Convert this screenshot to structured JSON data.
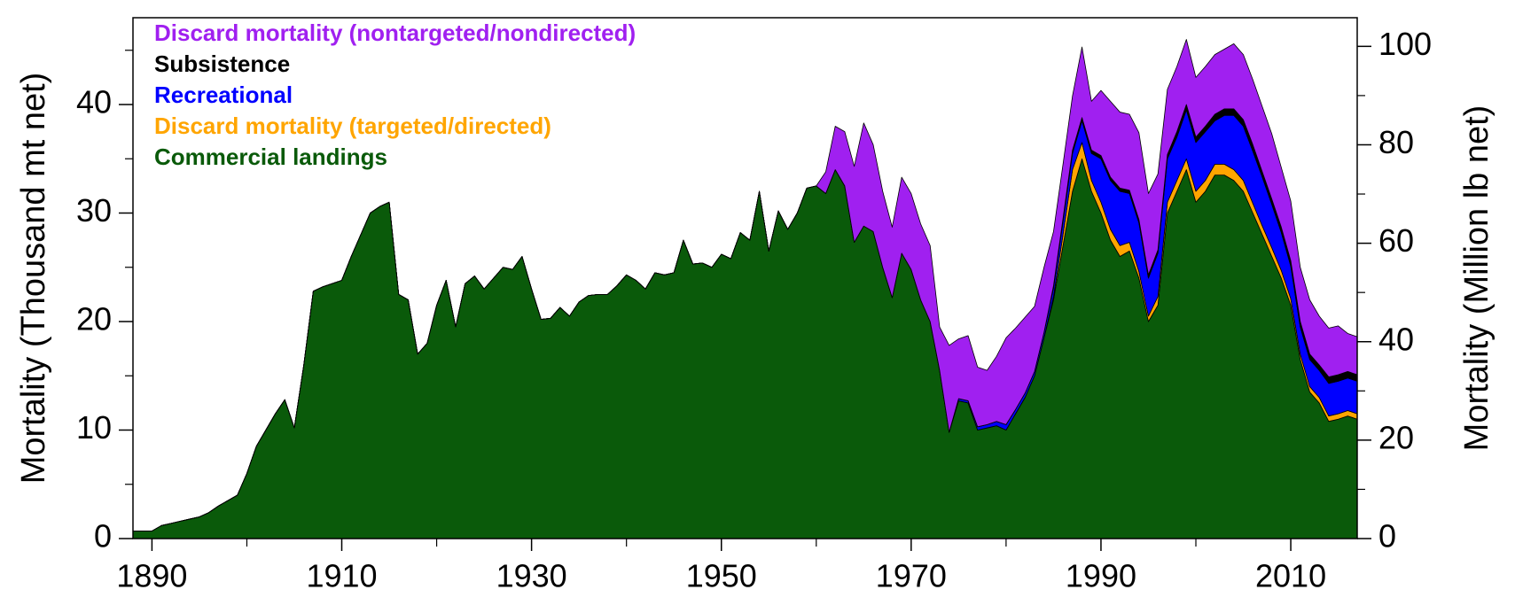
{
  "chart_data": {
    "type": "stacked_area",
    "y_label": "Mortality (Thousand mt net)",
    "y2_label": "Mortality (Million lb net)",
    "legend": "upper left",
    "xlim": [
      1888,
      2017
    ],
    "xticks": [
      1890,
      1910,
      1930,
      1950,
      1970,
      1990,
      2010
    ],
    "xminorticks": [
      1900,
      1920,
      1940,
      1960,
      1980,
      2000
    ],
    "ylim": [
      0,
      48
    ],
    "yticks": [
      0,
      10,
      20,
      30,
      40
    ],
    "yminorticks": [
      5,
      15,
      25,
      35,
      45
    ],
    "y2lim": [
      0,
      105.82
    ],
    "y2ticks": [
      0,
      20,
      40,
      60,
      80,
      100
    ],
    "y2minorticks": [
      10,
      30,
      50,
      70,
      90
    ],
    "x": [
      1888,
      1889,
      1890,
      1891,
      1892,
      1893,
      1894,
      1895,
      1896,
      1897,
      1898,
      1899,
      1900,
      1901,
      1902,
      1903,
      1904,
      1905,
      1906,
      1907,
      1908,
      1909,
      1910,
      1911,
      1912,
      1913,
      1914,
      1915,
      1916,
      1917,
      1918,
      1919,
      1920,
      1921,
      1922,
      1923,
      1924,
      1925,
      1926,
      1927,
      1928,
      1929,
      1930,
      1931,
      1932,
      1933,
      1934,
      1935,
      1936,
      1937,
      1938,
      1939,
      1940,
      1941,
      1942,
      1943,
      1944,
      1945,
      1946,
      1947,
      1948,
      1949,
      1950,
      1951,
      1952,
      1953,
      1954,
      1955,
      1956,
      1957,
      1958,
      1959,
      1960,
      1961,
      1962,
      1963,
      1964,
      1965,
      1966,
      1967,
      1968,
      1969,
      1970,
      1971,
      1972,
      1973,
      1974,
      1975,
      1976,
      1977,
      1978,
      1979,
      1980,
      1981,
      1982,
      1983,
      1984,
      1985,
      1986,
      1987,
      1988,
      1989,
      1990,
      1991,
      1992,
      1993,
      1994,
      1995,
      1996,
      1997,
      1998,
      1999,
      2000,
      2001,
      2002,
      2003,
      2004,
      2005,
      2006,
      2007,
      2008,
      2009,
      2010,
      2011,
      2012,
      2013,
      2014,
      2015,
      2016,
      2017
    ],
    "series": [
      {
        "name": "Commercial landings",
        "color": "#0a5a0a",
        "values": [
          0.7,
          0.7,
          0.7,
          1.2,
          1.4,
          1.6,
          1.8,
          2.0,
          2.4,
          3.0,
          3.5,
          4.0,
          6.0,
          8.5,
          10.0,
          11.5,
          12.8,
          10.2,
          16.0,
          22.8,
          23.2,
          23.5,
          23.8,
          26.0,
          28.0,
          30.0,
          30.6,
          31.0,
          22.5,
          22.0,
          17.0,
          18.0,
          21.5,
          23.8,
          19.5,
          23.5,
          24.2,
          23.0,
          24.0,
          25.0,
          24.8,
          26.0,
          23.0,
          20.2,
          20.3,
          21.3,
          20.5,
          21.8,
          22.4,
          22.5,
          22.5,
          23.3,
          24.3,
          23.8,
          23.0,
          24.5,
          24.3,
          24.5,
          27.5,
          25.3,
          25.4,
          25.0,
          26.2,
          25.8,
          28.2,
          27.5,
          32.0,
          26.5,
          30.2,
          28.5,
          30.0,
          32.3,
          32.5,
          31.8,
          34.0,
          32.5,
          27.3,
          28.8,
          28.3,
          25.0,
          22.2,
          26.3,
          24.8,
          22.0,
          20.0,
          15.5,
          9.8,
          12.7,
          12.5,
          10.0,
          10.2,
          10.4,
          10.0,
          11.5,
          13.0,
          15.0,
          18.5,
          22.0,
          27.0,
          32.0,
          35.0,
          32.0,
          30.0,
          27.5,
          26.0,
          26.5,
          24.0,
          20.0,
          21.5,
          30.0,
          32.0,
          34.0,
          31.0,
          32.0,
          33.5,
          33.5,
          33.0,
          32.0,
          30.0,
          28.0,
          26.0,
          24.0,
          21.5,
          16.5,
          13.5,
          12.5,
          10.8,
          11.0,
          11.3,
          11.0
        ]
      },
      {
        "name": "Discard mortality (targeted/directed)",
        "color": "#ffa500",
        "values": [
          0,
          0,
          0,
          0,
          0,
          0,
          0,
          0,
          0,
          0,
          0,
          0,
          0,
          0,
          0,
          0,
          0,
          0,
          0,
          0,
          0,
          0,
          0,
          0,
          0,
          0,
          0,
          0,
          0,
          0,
          0,
          0,
          0,
          0,
          0,
          0,
          0,
          0,
          0,
          0,
          0,
          0,
          0,
          0,
          0,
          0,
          0,
          0,
          0,
          0,
          0,
          0,
          0,
          0,
          0,
          0,
          0,
          0,
          0,
          0,
          0,
          0,
          0,
          0,
          0,
          0,
          0,
          0,
          0,
          0,
          0,
          0,
          0,
          0,
          0,
          0,
          0,
          0,
          0,
          0,
          0,
          0,
          0,
          0,
          0,
          0,
          0,
          0,
          0,
          0,
          0,
          0,
          0,
          0,
          0,
          0,
          0,
          0.3,
          1.0,
          2.0,
          1.5,
          1.0,
          1.0,
          1.0,
          1.0,
          0.8,
          0.6,
          0.5,
          0.8,
          1.0,
          1.0,
          1.0,
          1.0,
          1.0,
          1.0,
          1.0,
          1.0,
          1.0,
          0.9,
          0.8,
          0.8,
          0.7,
          0.6,
          0.5,
          0.5,
          0.5,
          0.5,
          0.5,
          0.5,
          0.5
        ]
      },
      {
        "name": "Recreational",
        "color": "#0000ff",
        "values": [
          0,
          0,
          0,
          0,
          0,
          0,
          0,
          0,
          0,
          0,
          0,
          0,
          0,
          0,
          0,
          0,
          0,
          0,
          0,
          0,
          0,
          0,
          0,
          0,
          0,
          0,
          0,
          0,
          0,
          0,
          0,
          0,
          0,
          0,
          0,
          0,
          0,
          0,
          0,
          0,
          0,
          0,
          0,
          0,
          0,
          0,
          0,
          0,
          0,
          0,
          0,
          0,
          0,
          0,
          0,
          0,
          0,
          0,
          0,
          0,
          0,
          0,
          0,
          0,
          0,
          0,
          0,
          0,
          0,
          0,
          0,
          0,
          0,
          0,
          0,
          0,
          0,
          0,
          0,
          0,
          0,
          0,
          0,
          0,
          0,
          0,
          0,
          0.2,
          0.2,
          0.3,
          0.3,
          0.4,
          0.5,
          0.4,
          0.4,
          0.4,
          0.5,
          0.8,
          1.2,
          1.5,
          2.0,
          2.5,
          4.0,
          4.5,
          5.0,
          4.5,
          4.5,
          3.5,
          4.0,
          4.0,
          4.0,
          4.5,
          4.5,
          4.5,
          4.0,
          4.5,
          5.0,
          5.0,
          4.8,
          4.5,
          4.0,
          3.5,
          3.0,
          2.5,
          2.5,
          2.5,
          3.0,
          3.0,
          3.0,
          3.0
        ]
      },
      {
        "name": "Subsistence",
        "color": "#000000",
        "values": [
          0,
          0,
          0,
          0,
          0,
          0,
          0,
          0,
          0,
          0,
          0,
          0,
          0,
          0,
          0,
          0,
          0,
          0,
          0,
          0,
          0,
          0,
          0,
          0,
          0,
          0,
          0,
          0,
          0,
          0,
          0,
          0,
          0,
          0,
          0,
          0,
          0,
          0,
          0,
          0,
          0,
          0,
          0,
          0,
          0,
          0,
          0,
          0,
          0,
          0,
          0,
          0,
          0,
          0,
          0,
          0,
          0,
          0,
          0,
          0,
          0,
          0,
          0,
          0,
          0,
          0,
          0,
          0,
          0,
          0,
          0,
          0,
          0,
          0,
          0,
          0,
          0,
          0,
          0,
          0,
          0,
          0,
          0,
          0,
          0,
          0,
          0,
          0,
          0,
          0,
          0,
          0,
          0,
          0,
          0,
          0,
          0,
          0.2,
          0.3,
          0.3,
          0.3,
          0.3,
          0.3,
          0.3,
          0.3,
          0.3,
          0.3,
          0.3,
          0.3,
          0.4,
          0.5,
          0.5,
          0.5,
          0.5,
          0.6,
          0.6,
          0.6,
          0.6,
          0.6,
          0.5,
          0.5,
          0.5,
          0.5,
          0.5,
          0.5,
          0.5,
          0.6,
          0.6,
          0.6,
          0.6
        ]
      },
      {
        "name": "Discard mortality (nontargeted/nondirected)",
        "color": "#a020f0",
        "values": [
          0,
          0,
          0,
          0,
          0,
          0,
          0,
          0,
          0,
          0,
          0,
          0,
          0,
          0,
          0,
          0,
          0,
          0,
          0,
          0,
          0,
          0,
          0,
          0,
          0,
          0,
          0,
          0,
          0,
          0,
          0,
          0,
          0,
          0,
          0,
          0,
          0,
          0,
          0,
          0,
          0,
          0,
          0,
          0,
          0,
          0,
          0,
          0,
          0,
          0,
          0,
          0,
          0,
          0,
          0,
          0,
          0,
          0,
          0,
          0,
          0,
          0,
          0,
          0,
          0,
          0,
          0,
          0,
          0,
          0,
          0,
          0,
          0,
          2,
          4,
          5,
          7,
          9.5,
          8,
          7,
          6.5,
          7,
          7,
          7,
          7,
          4,
          8,
          5.5,
          6,
          5.5,
          5,
          6,
          8,
          7.5,
          7,
          6,
          6,
          5,
          5,
          5,
          6.5,
          4.5,
          6,
          7,
          7,
          7,
          8,
          7.5,
          7,
          6,
          6,
          6,
          5.5,
          5.5,
          5.5,
          5.5,
          6,
          6,
          6,
          6,
          6,
          5.5,
          5.5,
          5,
          5,
          4.5,
          4.5,
          4.5,
          3.5,
          3.5
        ]
      }
    ]
  }
}
